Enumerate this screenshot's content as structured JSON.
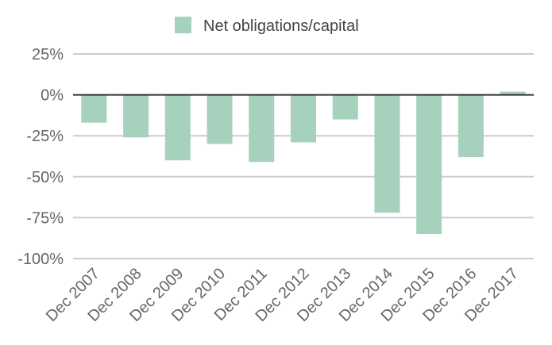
{
  "chart_data": {
    "type": "bar",
    "title": "",
    "xlabel": "",
    "ylabel": "",
    "categories": [
      "Dec 2007",
      "Dec 2008",
      "Dec 2009",
      "Dec 2010",
      "Dec 2011",
      "Dec 2012",
      "Dec 2013",
      "Dec 2014",
      "Dec 2015",
      "Dec 2016",
      "Dec 2017"
    ],
    "series": [
      {
        "name": "Net obligations/capital",
        "values": [
          -17,
          -26,
          -40,
          -30,
          -41,
          -29,
          -15,
          -72,
          -85,
          -38,
          2
        ],
        "color": "#a6d2bd"
      }
    ],
    "yticks": [
      25,
      0,
      -25,
      -50,
      -75,
      -100
    ],
    "ytick_labels": [
      "25%",
      "0%",
      "-25%",
      "-50%",
      "-75%",
      "-100%"
    ],
    "ylim": [
      -100,
      25
    ],
    "grid": true,
    "legend_position": "top-center",
    "colors": {
      "grid": "#cccccc",
      "zero_line": "#333333",
      "text": "#666666"
    }
  }
}
